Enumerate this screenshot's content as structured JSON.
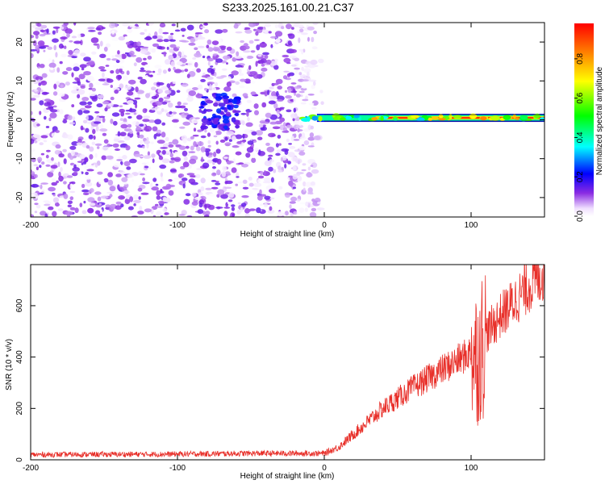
{
  "title": "S233.2025.161.00.21.C37",
  "chart_data": [
    {
      "type": "heatmap",
      "xlabel": "Height of straight line (km)",
      "ylabel": "Frequency (Hz)",
      "xlim": [
        -200,
        150
      ],
      "ylim": [
        -25,
        25
      ],
      "xticks": [
        "-200",
        "-100",
        "0",
        "100"
      ],
      "xtick_values": [
        -200,
        -100,
        0,
        100
      ],
      "yticks": [
        "-20",
        "-10",
        "0",
        "10",
        "20"
      ],
      "ytick_values": [
        -20,
        -10,
        0,
        10,
        20
      ],
      "colorbar": {
        "label": "Normalized spectral amplitude",
        "range": [
          0,
          0.98
        ],
        "ticks": [
          "0.0",
          "0.2",
          "0.4",
          "0.6",
          "0.8"
        ],
        "tick_values": [
          0.0,
          0.2,
          0.4,
          0.6,
          0.8
        ],
        "colormap": "rainbow (white-violet-blue-cyan-green-yellow-red)"
      },
      "features": {
        "noise_region_x": [
          -200,
          0
        ],
        "noise_amplitude": 0.15,
        "signal_region_x": [
          -20,
          150
        ],
        "signal_frequency_hz": 0.5,
        "signal_peak_amplitude": 0.95,
        "cluster_center": [
          -72,
          2
        ]
      }
    },
    {
      "type": "line",
      "xlabel": "Height of straight line (km)",
      "ylabel": "SNR (10 * v/v)",
      "xlim": [
        -200,
        150
      ],
      "ylim": [
        0,
        760
      ],
      "xticks": [
        "-200",
        "-100",
        "0",
        "100"
      ],
      "xtick_values": [
        -200,
        -100,
        0,
        100
      ],
      "yticks": [
        "0",
        "200",
        "400",
        "600"
      ],
      "ytick_values": [
        0,
        200,
        400,
        600
      ],
      "color": "#e8302a",
      "trend_points": [
        {
          "x": -200,
          "y": 20
        },
        {
          "x": -100,
          "y": 22
        },
        {
          "x": -50,
          "y": 25
        },
        {
          "x": 0,
          "y": 25
        },
        {
          "x": 10,
          "y": 50
        },
        {
          "x": 20,
          "y": 100
        },
        {
          "x": 40,
          "y": 200
        },
        {
          "x": 60,
          "y": 280
        },
        {
          "x": 80,
          "y": 350
        },
        {
          "x": 95,
          "y": 400
        },
        {
          "x": 100,
          "y": 420
        },
        {
          "x": 105,
          "y": 400
        },
        {
          "x": 110,
          "y": 490
        },
        {
          "x": 120,
          "y": 560
        },
        {
          "x": 130,
          "y": 620
        },
        {
          "x": 140,
          "y": 680
        },
        {
          "x": 150,
          "y": 730
        }
      ],
      "noise_amplitude": 15
    }
  ]
}
